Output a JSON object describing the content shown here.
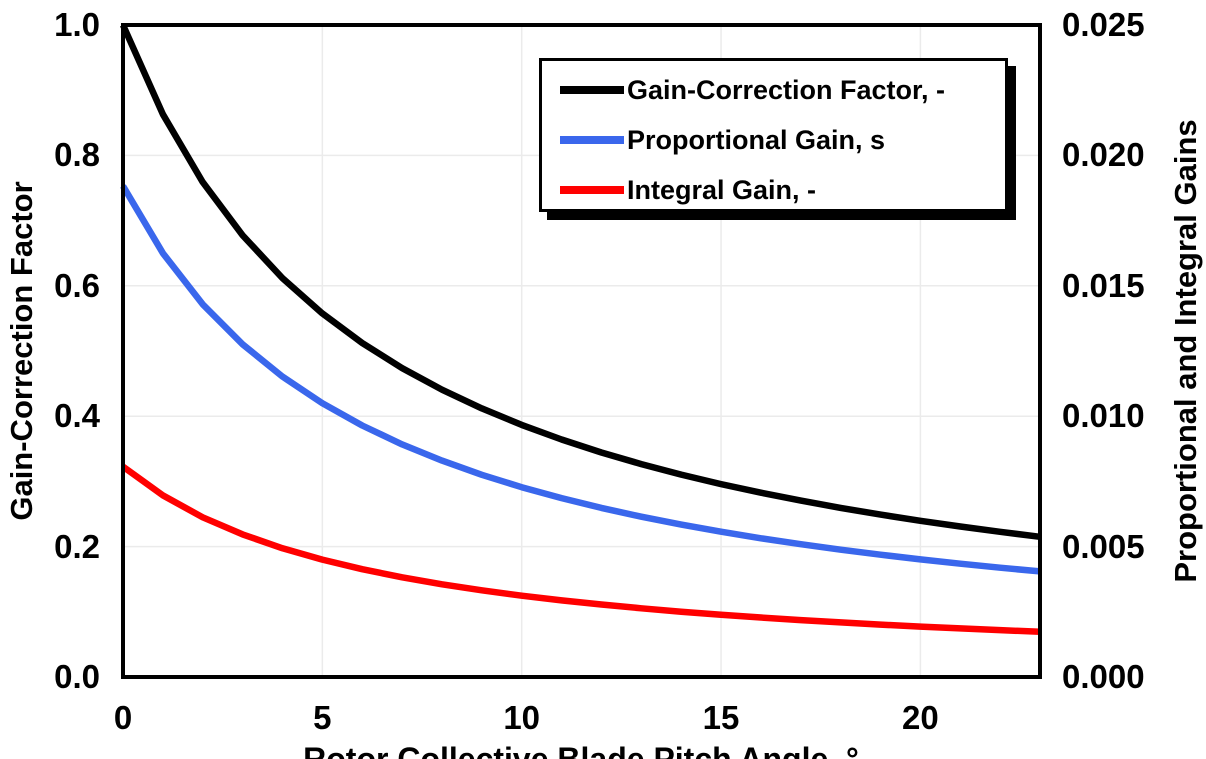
{
  "chart_data": {
    "type": "line",
    "title": "",
    "xlabel": "Rotor Collective Blade Pitch Angle, °",
    "ylabel_left": "Gain-Correction Factor",
    "ylabel_right": "Proportional and Integral Gains",
    "xlim": [
      0,
      23
    ],
    "ylim_left": [
      0.0,
      1.0
    ],
    "ylim_right": [
      0.0,
      0.025
    ],
    "grid": true,
    "grid_color": "#EBEBEB",
    "legend_position": "top-center-inside",
    "x_ticks": [
      {
        "v": 0,
        "label": "0"
      },
      {
        "v": 5,
        "label": "5"
      },
      {
        "v": 10,
        "label": "10"
      },
      {
        "v": 15,
        "label": "15"
      },
      {
        "v": 20,
        "label": "20"
      }
    ],
    "y_ticks_left": [
      {
        "v": 0.0,
        "label": "0.0"
      },
      {
        "v": 0.2,
        "label": "0.2"
      },
      {
        "v": 0.4,
        "label": "0.4"
      },
      {
        "v": 0.6,
        "label": "0.6"
      },
      {
        "v": 0.8,
        "label": "0.8"
      },
      {
        "v": 1.0,
        "label": "1.0"
      }
    ],
    "y_ticks_right": [
      {
        "v": 0.0,
        "label": "0.000"
      },
      {
        "v": 0.005,
        "label": "0.005"
      },
      {
        "v": 0.01,
        "label": "0.010"
      },
      {
        "v": 0.015,
        "label": "0.015"
      },
      {
        "v": 0.02,
        "label": "0.020"
      },
      {
        "v": 0.025,
        "label": "0.025"
      }
    ],
    "x": [
      0,
      1,
      2,
      3,
      4,
      5,
      6,
      7,
      8,
      9,
      10,
      11,
      12,
      13,
      14,
      15,
      16,
      17,
      18,
      19,
      20,
      21,
      22,
      23
    ],
    "series": [
      {
        "name": "Gain-Correction Factor, -",
        "color": "#000000",
        "axis": "left",
        "values": [
          1.0,
          0.8631,
          0.7591,
          0.6775,
          0.6117,
          0.5576,
          0.5123,
          0.4738,
          0.4406,
          0.4119,
          0.3866,
          0.3642,
          0.3443,
          0.3265,
          0.3104,
          0.2959,
          0.2826,
          0.2705,
          0.2593,
          0.2491,
          0.2396,
          0.2308,
          0.2227,
          0.2151
        ]
      },
      {
        "name": "Proportional Gain, s",
        "color": "#3A67EC",
        "axis": "right",
        "values": [
          0.018827,
          0.016249,
          0.014291,
          0.012755,
          0.011517,
          0.010498,
          0.009645,
          0.00892,
          0.008296,
          0.007754,
          0.007278,
          0.006858,
          0.006483,
          0.006147,
          0.005844,
          0.00557,
          0.00532,
          0.005092,
          0.004882,
          0.004689,
          0.004511,
          0.004345,
          0.004192,
          0.004049
        ]
      },
      {
        "name": "Integral Gain, -",
        "color": "#FF0000",
        "axis": "right",
        "values": [
          0.008069,
          0.006964,
          0.006125,
          0.005467,
          0.004936,
          0.0045,
          0.004134,
          0.003823,
          0.003556,
          0.003323,
          0.003119,
          0.002939,
          0.002779,
          0.002634,
          0.002505,
          0.002387,
          0.00228,
          0.002182,
          0.002093,
          0.00201,
          0.001933,
          0.001862,
          0.001797,
          0.001735
        ]
      }
    ],
    "axis_color": "#000000",
    "background": "#FFFFFF"
  }
}
